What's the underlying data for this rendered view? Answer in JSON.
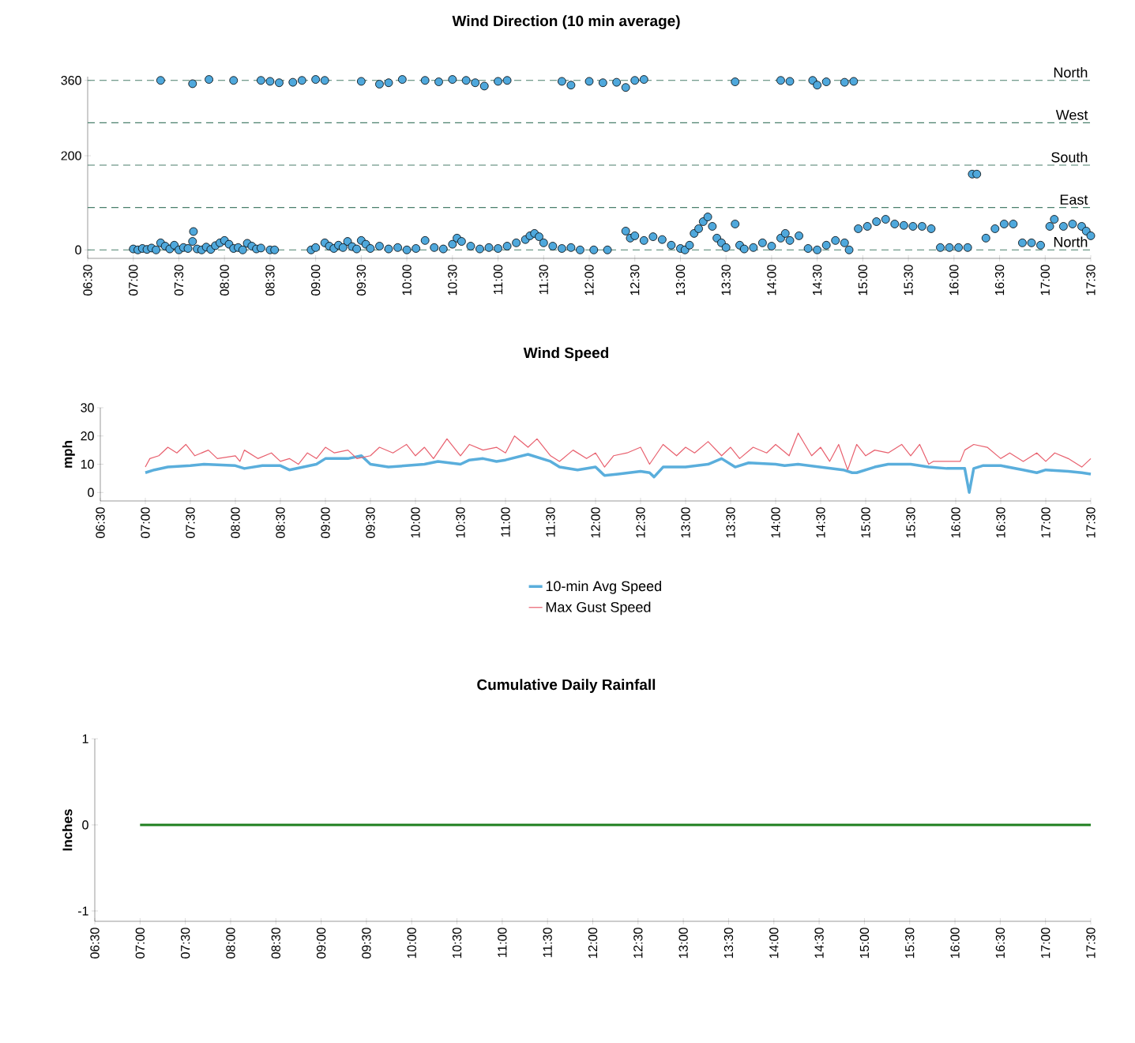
{
  "chart_data": [
    {
      "type": "scatter",
      "title": "Wind Direction (10 min average)",
      "marker": "circle",
      "color": "#4fa8dc",
      "x": [
        7.0,
        7.05,
        7.1,
        7.15,
        7.2,
        7.25,
        7.3,
        7.35,
        7.4,
        7.45,
        7.5,
        7.55,
        7.6,
        7.65,
        7.66,
        7.7,
        7.75,
        7.8,
        7.85,
        7.9,
        7.95,
        8.0,
        8.05,
        8.1,
        8.15,
        8.2,
        8.25,
        8.3,
        8.35,
        8.4,
        8.5,
        8.55,
        8.95,
        9.0,
        9.1,
        9.15,
        9.2,
        9.25,
        9.3,
        9.35,
        9.4,
        9.45,
        9.5,
        9.55,
        9.6,
        9.7,
        9.8,
        9.9,
        10.0,
        10.1,
        10.2,
        10.3,
        10.4,
        10.5,
        10.55,
        10.6,
        10.7,
        10.8,
        10.9,
        11.0,
        11.1,
        11.2,
        11.3,
        11.35,
        11.4,
        11.45,
        11.5,
        11.6,
        11.7,
        11.8,
        11.9,
        12.05,
        12.2,
        12.4,
        12.45,
        12.5,
        12.6,
        12.7,
        12.8,
        12.9,
        13.0,
        13.05,
        13.1,
        13.15,
        13.2,
        13.25,
        13.3,
        13.35,
        13.4,
        13.45,
        13.5,
        13.6,
        13.65,
        13.7,
        13.8,
        13.9,
        14.0,
        14.1,
        14.15,
        14.2,
        14.3,
        14.4,
        14.5,
        14.6,
        14.7,
        14.8,
        14.85,
        14.95,
        15.05,
        15.15,
        15.25,
        15.35,
        15.45,
        15.55,
        15.65,
        15.75,
        15.85,
        15.95,
        16.05,
        16.15,
        16.2,
        16.25,
        16.35,
        16.45,
        16.55,
        16.65,
        16.75,
        16.85,
        16.95,
        17.05,
        17.1,
        17.2,
        17.3,
        17.4,
        17.45,
        17.5,
        7.3,
        7.65,
        7.83,
        8.1,
        8.4,
        8.5,
        8.6,
        8.75,
        8.85,
        9.0,
        9.1,
        9.5,
        9.7,
        9.8,
        9.95,
        10.2,
        10.35,
        10.5,
        10.65,
        10.75,
        10.85,
        11.0,
        11.1,
        11.7,
        11.8,
        12.0,
        12.15,
        12.3,
        12.4,
        12.5,
        12.6,
        13.6,
        14.1,
        14.2,
        14.45,
        14.5,
        14.6,
        14.8,
        14.9
      ],
      "values": [
        2,
        0,
        3,
        1,
        4,
        0,
        15,
        8,
        2,
        10,
        0,
        5,
        3,
        18,
        39,
        2,
        0,
        6,
        1,
        9,
        15,
        20,
        12,
        3,
        5,
        0,
        14,
        8,
        2,
        4,
        0,
        0,
        0,
        5,
        15,
        8,
        3,
        10,
        5,
        18,
        7,
        2,
        20,
        12,
        3,
        8,
        2,
        5,
        0,
        3,
        20,
        5,
        2,
        12,
        25,
        18,
        8,
        2,
        5,
        3,
        8,
        15,
        22,
        30,
        35,
        28,
        15,
        8,
        3,
        5,
        0,
        0,
        0,
        40,
        25,
        30,
        20,
        28,
        22,
        10,
        3,
        0,
        10,
        35,
        45,
        60,
        70,
        50,
        25,
        15,
        5,
        55,
        10,
        2,
        5,
        15,
        8,
        25,
        35,
        20,
        30,
        3,
        0,
        10,
        20,
        15,
        0,
        45,
        50,
        60,
        65,
        55,
        52,
        50,
        50,
        45,
        5,
        5,
        5,
        5,
        161,
        161,
        25,
        45,
        55,
        55,
        15,
        15,
        10,
        50,
        65,
        50,
        55,
        50,
        40,
        30,
        360,
        353,
        362,
        360,
        360,
        358,
        355,
        356,
        360,
        362,
        360,
        358,
        352,
        355,
        362,
        360,
        357,
        362,
        360,
        355,
        348,
        358,
        360,
        358,
        350,
        358,
        355,
        356,
        345,
        360,
        362,
        357,
        360,
        358,
        360,
        350,
        357,
        356,
        358
      ],
      "xlim": [
        6.5,
        17.5
      ],
      "ylim": [
        -18,
        368
      ],
      "yticks": [
        0,
        200,
        360
      ],
      "xticks": [
        {
          "value": 6.5,
          "label": "06:30"
        },
        {
          "value": 7,
          "label": "07:00"
        },
        {
          "value": 7.5,
          "label": "07:30"
        },
        {
          "value": 8,
          "label": "08:00"
        },
        {
          "value": 8.5,
          "label": "08:30"
        },
        {
          "value": 9,
          "label": "09:00"
        },
        {
          "value": 9.5,
          "label": "09:30"
        },
        {
          "value": 10,
          "label": "10:00"
        },
        {
          "value": 10.5,
          "label": "10:30"
        },
        {
          "value": 11,
          "label": "11:00"
        },
        {
          "value": 11.5,
          "label": "11:30"
        },
        {
          "value": 12,
          "label": "12:00"
        },
        {
          "value": 12.5,
          "label": "12:30"
        },
        {
          "value": 13,
          "label": "13:00"
        },
        {
          "value": 13.5,
          "label": "13:30"
        },
        {
          "value": 14,
          "label": "14:00"
        },
        {
          "value": 14.5,
          "label": "14:30"
        },
        {
          "value": 15,
          "label": "15:00"
        },
        {
          "value": 15.5,
          "label": "15:30"
        },
        {
          "value": 16,
          "label": "16:00"
        },
        {
          "value": 16.5,
          "label": "16:30"
        },
        {
          "value": 17,
          "label": "17:00"
        },
        {
          "value": 17.5,
          "label": "17:30"
        }
      ],
      "ref_lines": [
        {
          "axis": "y",
          "value": 360,
          "label": "North",
          "color": "#4a7f6c",
          "line_style": "dashed"
        },
        {
          "axis": "y",
          "value": 270,
          "label": "West",
          "color": "#4a7f6c",
          "line_style": "dashed"
        },
        {
          "axis": "y",
          "value": 180,
          "label": "South",
          "color": "#4a7f6c",
          "line_style": "dashed"
        },
        {
          "axis": "y",
          "value": 90,
          "label": "East",
          "color": "#4a7f6c",
          "line_style": "dashed"
        },
        {
          "axis": "y",
          "value": 0,
          "label": "North",
          "color": "#4a7f6c",
          "line_style": "dashed"
        }
      ]
    },
    {
      "type": "line",
      "title": "Wind Speed",
      "ylabel": "mph",
      "legend": "bottom",
      "marker": "none",
      "line_style": "solid",
      "xlim": [
        6.5,
        17.5
      ],
      "ylim": [
        -3,
        30
      ],
      "yticks": [
        0,
        10,
        20,
        30
      ],
      "xticks": [
        {
          "value": 6.5,
          "label": "06:30"
        },
        {
          "value": 7,
          "label": "07:00"
        },
        {
          "value": 7.5,
          "label": "07:30"
        },
        {
          "value": 8,
          "label": "08:00"
        },
        {
          "value": 8.5,
          "label": "08:30"
        },
        {
          "value": 9,
          "label": "09:00"
        },
        {
          "value": 9.5,
          "label": "09:30"
        },
        {
          "value": 10,
          "label": "10:00"
        },
        {
          "value": 10.5,
          "label": "10:30"
        },
        {
          "value": 11,
          "label": "11:00"
        },
        {
          "value": 11.5,
          "label": "11:30"
        },
        {
          "value": 12,
          "label": "12:00"
        },
        {
          "value": 12.5,
          "label": "12:30"
        },
        {
          "value": 13,
          "label": "13:00"
        },
        {
          "value": 13.5,
          "label": "13:30"
        },
        {
          "value": 14,
          "label": "14:00"
        },
        {
          "value": 14.5,
          "label": "14:30"
        },
        {
          "value": 15,
          "label": "15:00"
        },
        {
          "value": 15.5,
          "label": "15:30"
        },
        {
          "value": 16,
          "label": "16:00"
        },
        {
          "value": 16.5,
          "label": "16:30"
        },
        {
          "value": 17,
          "label": "17:00"
        },
        {
          "value": 17.5,
          "label": "17:30"
        }
      ],
      "series": [
        {
          "name": "10-min Avg Speed",
          "color": "#5aaedc",
          "x": [
            7.0,
            7.1,
            7.25,
            7.5,
            7.65,
            8.0,
            8.1,
            8.3,
            8.5,
            8.6,
            8.75,
            8.9,
            9.0,
            9.25,
            9.4,
            9.5,
            9.7,
            9.9,
            10.1,
            10.25,
            10.5,
            10.6,
            10.75,
            10.9,
            11.0,
            11.25,
            11.5,
            11.6,
            11.8,
            12.0,
            12.1,
            12.25,
            12.5,
            12.6,
            12.65,
            12.75,
            13.0,
            13.25,
            13.4,
            13.55,
            13.7,
            14.0,
            14.1,
            14.25,
            14.5,
            14.75,
            14.85,
            14.9,
            15.1,
            15.25,
            15.5,
            15.7,
            15.9,
            16.1,
            16.15,
            16.2,
            16.3,
            16.5,
            16.75,
            16.9,
            17.0,
            17.25,
            17.4,
            17.5
          ],
          "values": [
            7,
            8,
            9,
            9.5,
            10,
            9.5,
            8.5,
            9.5,
            9.5,
            8,
            9,
            10,
            12,
            12,
            13,
            10,
            9,
            9.5,
            10,
            11,
            10,
            11.5,
            12,
            11,
            11.5,
            13.5,
            11,
            9,
            8,
            9,
            6,
            6.5,
            7.5,
            7,
            5.5,
            9,
            9,
            10,
            12,
            9,
            10.5,
            10,
            9.5,
            10,
            9,
            8,
            7,
            7,
            9,
            10,
            10,
            9,
            8.5,
            8.5,
            0,
            8.5,
            9.5,
            9.5,
            8,
            7,
            8,
            7.5,
            7,
            6.5
          ]
        },
        {
          "name": "Max Gust Speed",
          "color": "#e8606e",
          "x": [
            7.0,
            7.05,
            7.15,
            7.25,
            7.35,
            7.45,
            7.55,
            7.7,
            7.8,
            8.0,
            8.05,
            8.1,
            8.25,
            8.4,
            8.5,
            8.6,
            8.7,
            8.8,
            8.9,
            9.0,
            9.1,
            9.25,
            9.35,
            9.5,
            9.6,
            9.75,
            9.9,
            10.0,
            10.1,
            10.2,
            10.35,
            10.5,
            10.6,
            10.75,
            10.9,
            11.0,
            11.1,
            11.25,
            11.35,
            11.5,
            11.6,
            11.75,
            11.9,
            12.0,
            12.1,
            12.2,
            12.35,
            12.5,
            12.6,
            12.75,
            12.9,
            13.0,
            13.1,
            13.25,
            13.4,
            13.5,
            13.6,
            13.75,
            13.9,
            14.0,
            14.15,
            14.25,
            14.4,
            14.5,
            14.6,
            14.7,
            14.8,
            14.9,
            15.0,
            15.1,
            15.25,
            15.4,
            15.5,
            15.6,
            15.7,
            15.75,
            16.05,
            16.1,
            16.2,
            16.35,
            16.5,
            16.6,
            16.75,
            16.9,
            17.0,
            17.1,
            17.25,
            17.35,
            17.4,
            17.5
          ],
          "values": [
            9,
            12,
            13,
            16,
            14,
            17,
            13,
            15,
            12,
            13,
            11,
            15,
            12,
            14,
            11,
            12,
            10,
            14,
            12,
            16,
            14,
            15,
            12,
            13,
            16,
            14,
            17,
            13,
            16,
            12,
            19,
            13,
            17,
            15,
            16,
            14,
            20,
            16,
            19,
            13,
            11,
            15,
            12,
            14,
            9,
            13,
            14,
            16,
            10,
            17,
            13,
            16,
            14,
            18,
            13,
            16,
            12,
            16,
            14,
            17,
            13,
            21,
            13,
            16,
            11,
            17,
            8,
            17,
            13,
            15,
            14,
            17,
            13,
            17,
            10,
            11,
            11,
            15,
            17,
            16,
            12,
            14,
            11,
            14,
            11,
            14,
            12,
            10,
            9,
            12
          ]
        }
      ]
    },
    {
      "type": "line",
      "title": "Cumulative Daily Rainfall",
      "ylabel": "Inches",
      "marker": "none",
      "line_style": "solid",
      "xlim": [
        6.5,
        17.5
      ],
      "ylim": [
        -1.12,
        1
      ],
      "yticks": [
        -1,
        0,
        1
      ],
      "xticks": [
        {
          "value": 6.5,
          "label": "06:30"
        },
        {
          "value": 7,
          "label": "07:00"
        },
        {
          "value": 7.5,
          "label": "07:30"
        },
        {
          "value": 8,
          "label": "08:00"
        },
        {
          "value": 8.5,
          "label": "08:30"
        },
        {
          "value": 9,
          "label": "09:00"
        },
        {
          "value": 9.5,
          "label": "09:30"
        },
        {
          "value": 10,
          "label": "10:00"
        },
        {
          "value": 10.5,
          "label": "10:30"
        },
        {
          "value": 11,
          "label": "11:00"
        },
        {
          "value": 11.5,
          "label": "11:30"
        },
        {
          "value": 12,
          "label": "12:00"
        },
        {
          "value": 12.5,
          "label": "12:30"
        },
        {
          "value": 13,
          "label": "13:00"
        },
        {
          "value": 13.5,
          "label": "13:30"
        },
        {
          "value": 14,
          "label": "14:00"
        },
        {
          "value": 14.5,
          "label": "14:30"
        },
        {
          "value": 15,
          "label": "15:00"
        },
        {
          "value": 15.5,
          "label": "15:30"
        },
        {
          "value": 16,
          "label": "16:00"
        },
        {
          "value": 16.5,
          "label": "16:30"
        },
        {
          "value": 17,
          "label": "17:00"
        },
        {
          "value": 17.5,
          "label": "17:30"
        }
      ],
      "series": [
        {
          "color": "#1f7f1f",
          "x": [
            7.0,
            17.5
          ],
          "values": [
            0,
            0
          ]
        }
      ]
    }
  ]
}
